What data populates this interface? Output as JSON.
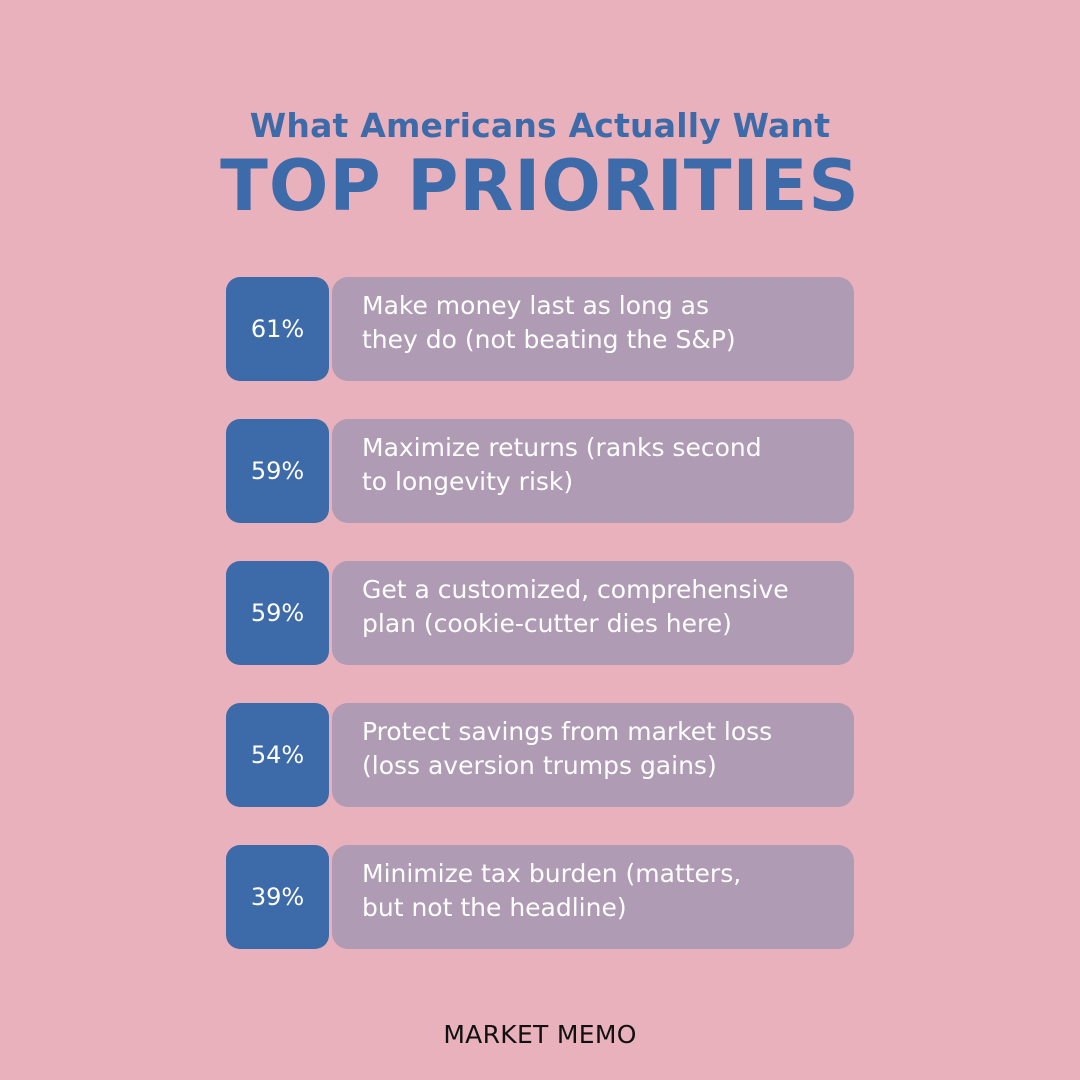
{
  "header": {
    "subtitle": "What Americans Actually Want",
    "title": "TOP PRIORITIES"
  },
  "priorities": [
    {
      "percent": "61%",
      "line1": "Make money last as long as",
      "line2": "they do (not beating the S&P)"
    },
    {
      "percent": "59%",
      "line1": "Maximize returns (ranks second",
      "line2": "to longevity risk)"
    },
    {
      "percent": "59%",
      "line1": "Get a customized, comprehensive",
      "line2": "plan (cookie-cutter dies here)"
    },
    {
      "percent": "54%",
      "line1": "Protect savings from market loss",
      "line2": "(loss aversion trumps gains)"
    },
    {
      "percent": "39%",
      "line1": "Minimize tax burden (matters,",
      "line2": "but not the headline)"
    }
  ],
  "footer": {
    "brand": "MARKET MEMO"
  },
  "colors": {
    "background": "#e9b1bb",
    "accent_blue": "#3d6aa8",
    "card_mauve": "#af9bb4"
  }
}
